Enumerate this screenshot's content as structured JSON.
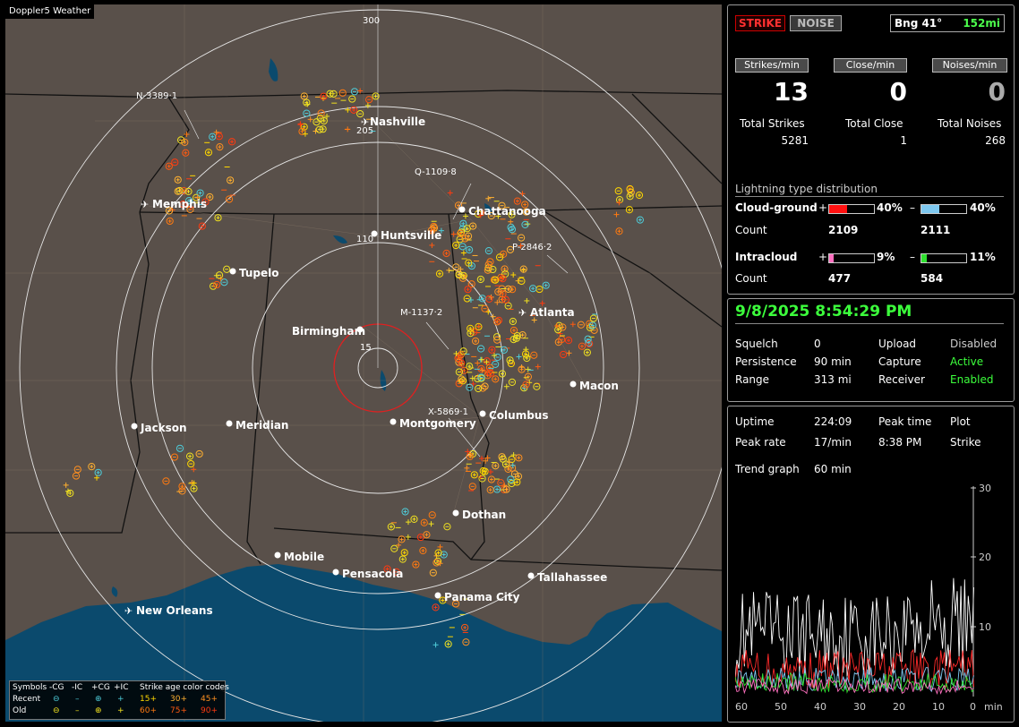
{
  "app": {
    "title": "Doppler5 Weather"
  },
  "map": {
    "range_labels": [
      "300",
      "205",
      "110",
      "15"
    ],
    "cities": [
      "Nashville",
      "Memphis",
      "Chattanooga",
      "Huntsville",
      "Tupelo",
      "Atlanta",
      "Birmingham",
      "Macon",
      "Jackson",
      "Meridian",
      "Montgomery",
      "Columbus",
      "Dothan",
      "Mobile",
      "Pensacola",
      "Tallahassee",
      "Panama City",
      "New Orleans"
    ],
    "storm_tags": [
      "N-3389·1",
      "Q-1109·8",
      "P-2846·2",
      "M-1137·2",
      "X-5869·1"
    ],
    "colors": {
      "land": "#59504a",
      "water": "#0b4a6d",
      "range_ring": "#e6e6e6",
      "inner_ring": "#e02020"
    }
  },
  "legend": {
    "symbols_label": "Symbols",
    "types": [
      "-CG",
      "-IC",
      "+CG",
      "+IC"
    ],
    "age_label": "Strike age color codes",
    "recent_label": "Recent",
    "old_label": "Old",
    "recent_ages": [
      "15+",
      "30+",
      "45+"
    ],
    "old_ages": [
      "60+",
      "75+",
      "90+"
    ],
    "recent_color": "#4ecbd8",
    "old_color": "#f0e020",
    "age_colors": [
      "#ffd700",
      "#ffb030",
      "#ff9020",
      "#ff7a10",
      "#ff5a10",
      "#ff3a10"
    ]
  },
  "header": {
    "strike_label": "STRIKE",
    "noise_label": "NOISE",
    "bearing": "Bng 41°",
    "range": "152mi"
  },
  "rates": {
    "strikes_min_label": "Strikes/min",
    "close_min_label": "Close/min",
    "noises_min_label": "Noises/min",
    "strikes_min": "13",
    "close_min": "0",
    "noises_min": "0",
    "total_strikes_label": "Total Strikes",
    "total_close_label": "Total Close",
    "total_noises_label": "Total Noises",
    "total_strikes": "5281",
    "total_close": "1",
    "total_noises": "268"
  },
  "distribution": {
    "title": "Lightning type distribution",
    "cg_label": "Cloud-ground",
    "ic_label": "Intracloud",
    "count_label": "Count",
    "plus_sign": "+",
    "minus_sign": "–",
    "cg_pos_pct_text": "40%",
    "cg_neg_pct_text": "40%",
    "ic_pos_pct_text": "9%",
    "ic_neg_pct_text": "11%",
    "cg_pos_pct": 40,
    "cg_neg_pct": 40,
    "ic_pos_pct": 9,
    "ic_neg_pct": 11,
    "cg_pos_count": "2109",
    "cg_neg_count": "2111",
    "ic_pos_count": "477",
    "ic_neg_count": "584",
    "cg_pos_color": "#ff1010",
    "cg_neg_color": "#7ec8f0",
    "ic_pos_color": "#ff70c0",
    "ic_neg_color": "#30e030"
  },
  "status": {
    "datetime": "9/8/2025 8:54:29 PM",
    "squelch_label": "Squelch",
    "squelch": "0",
    "persistence_label": "Persistence",
    "persistence": "90 min",
    "range_label": "Range",
    "range": "313 mi",
    "upload_label": "Upload",
    "upload": "Disabled",
    "capture_label": "Capture",
    "capture": "Active",
    "receiver_label": "Receiver",
    "receiver": "Enabled"
  },
  "trend": {
    "uptime_label": "Uptime",
    "uptime": "224:09",
    "peak_time_label": "Peak time",
    "peak_time": "8:38 PM",
    "plot_label": "Plot",
    "plot": "Strike",
    "peak_rate_label": "Peak rate",
    "peak_rate": "17/min",
    "trend_graph_label": "Trend graph",
    "trend_graph": "60 min",
    "y_ticks": [
      "30",
      "20",
      "10"
    ],
    "x_ticks": [
      "60",
      "50",
      "40",
      "30",
      "20",
      "10",
      "0"
    ],
    "x_unit": "min"
  }
}
